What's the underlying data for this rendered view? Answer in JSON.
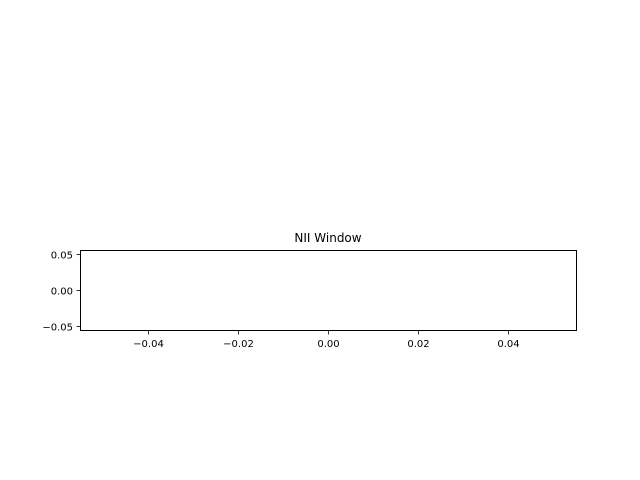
{
  "chart_data": {
    "type": "line",
    "title": "NII Window",
    "xlabel": "",
    "ylabel": "",
    "series": [],
    "xlim": [
      -0.055,
      0.055
    ],
    "ylim": [
      -0.055,
      0.055
    ],
    "x_ticks": [
      -0.04,
      -0.02,
      0.0,
      0.02,
      0.04
    ],
    "x_tick_labels": [
      "−0.04",
      "−0.02",
      "0.00",
      "0.02",
      "0.04"
    ],
    "y_ticks": [
      -0.05,
      0.0,
      0.05
    ],
    "y_tick_labels": [
      "−0.05",
      "0.00",
      "0.05"
    ],
    "grid": false,
    "legend": "none"
  }
}
